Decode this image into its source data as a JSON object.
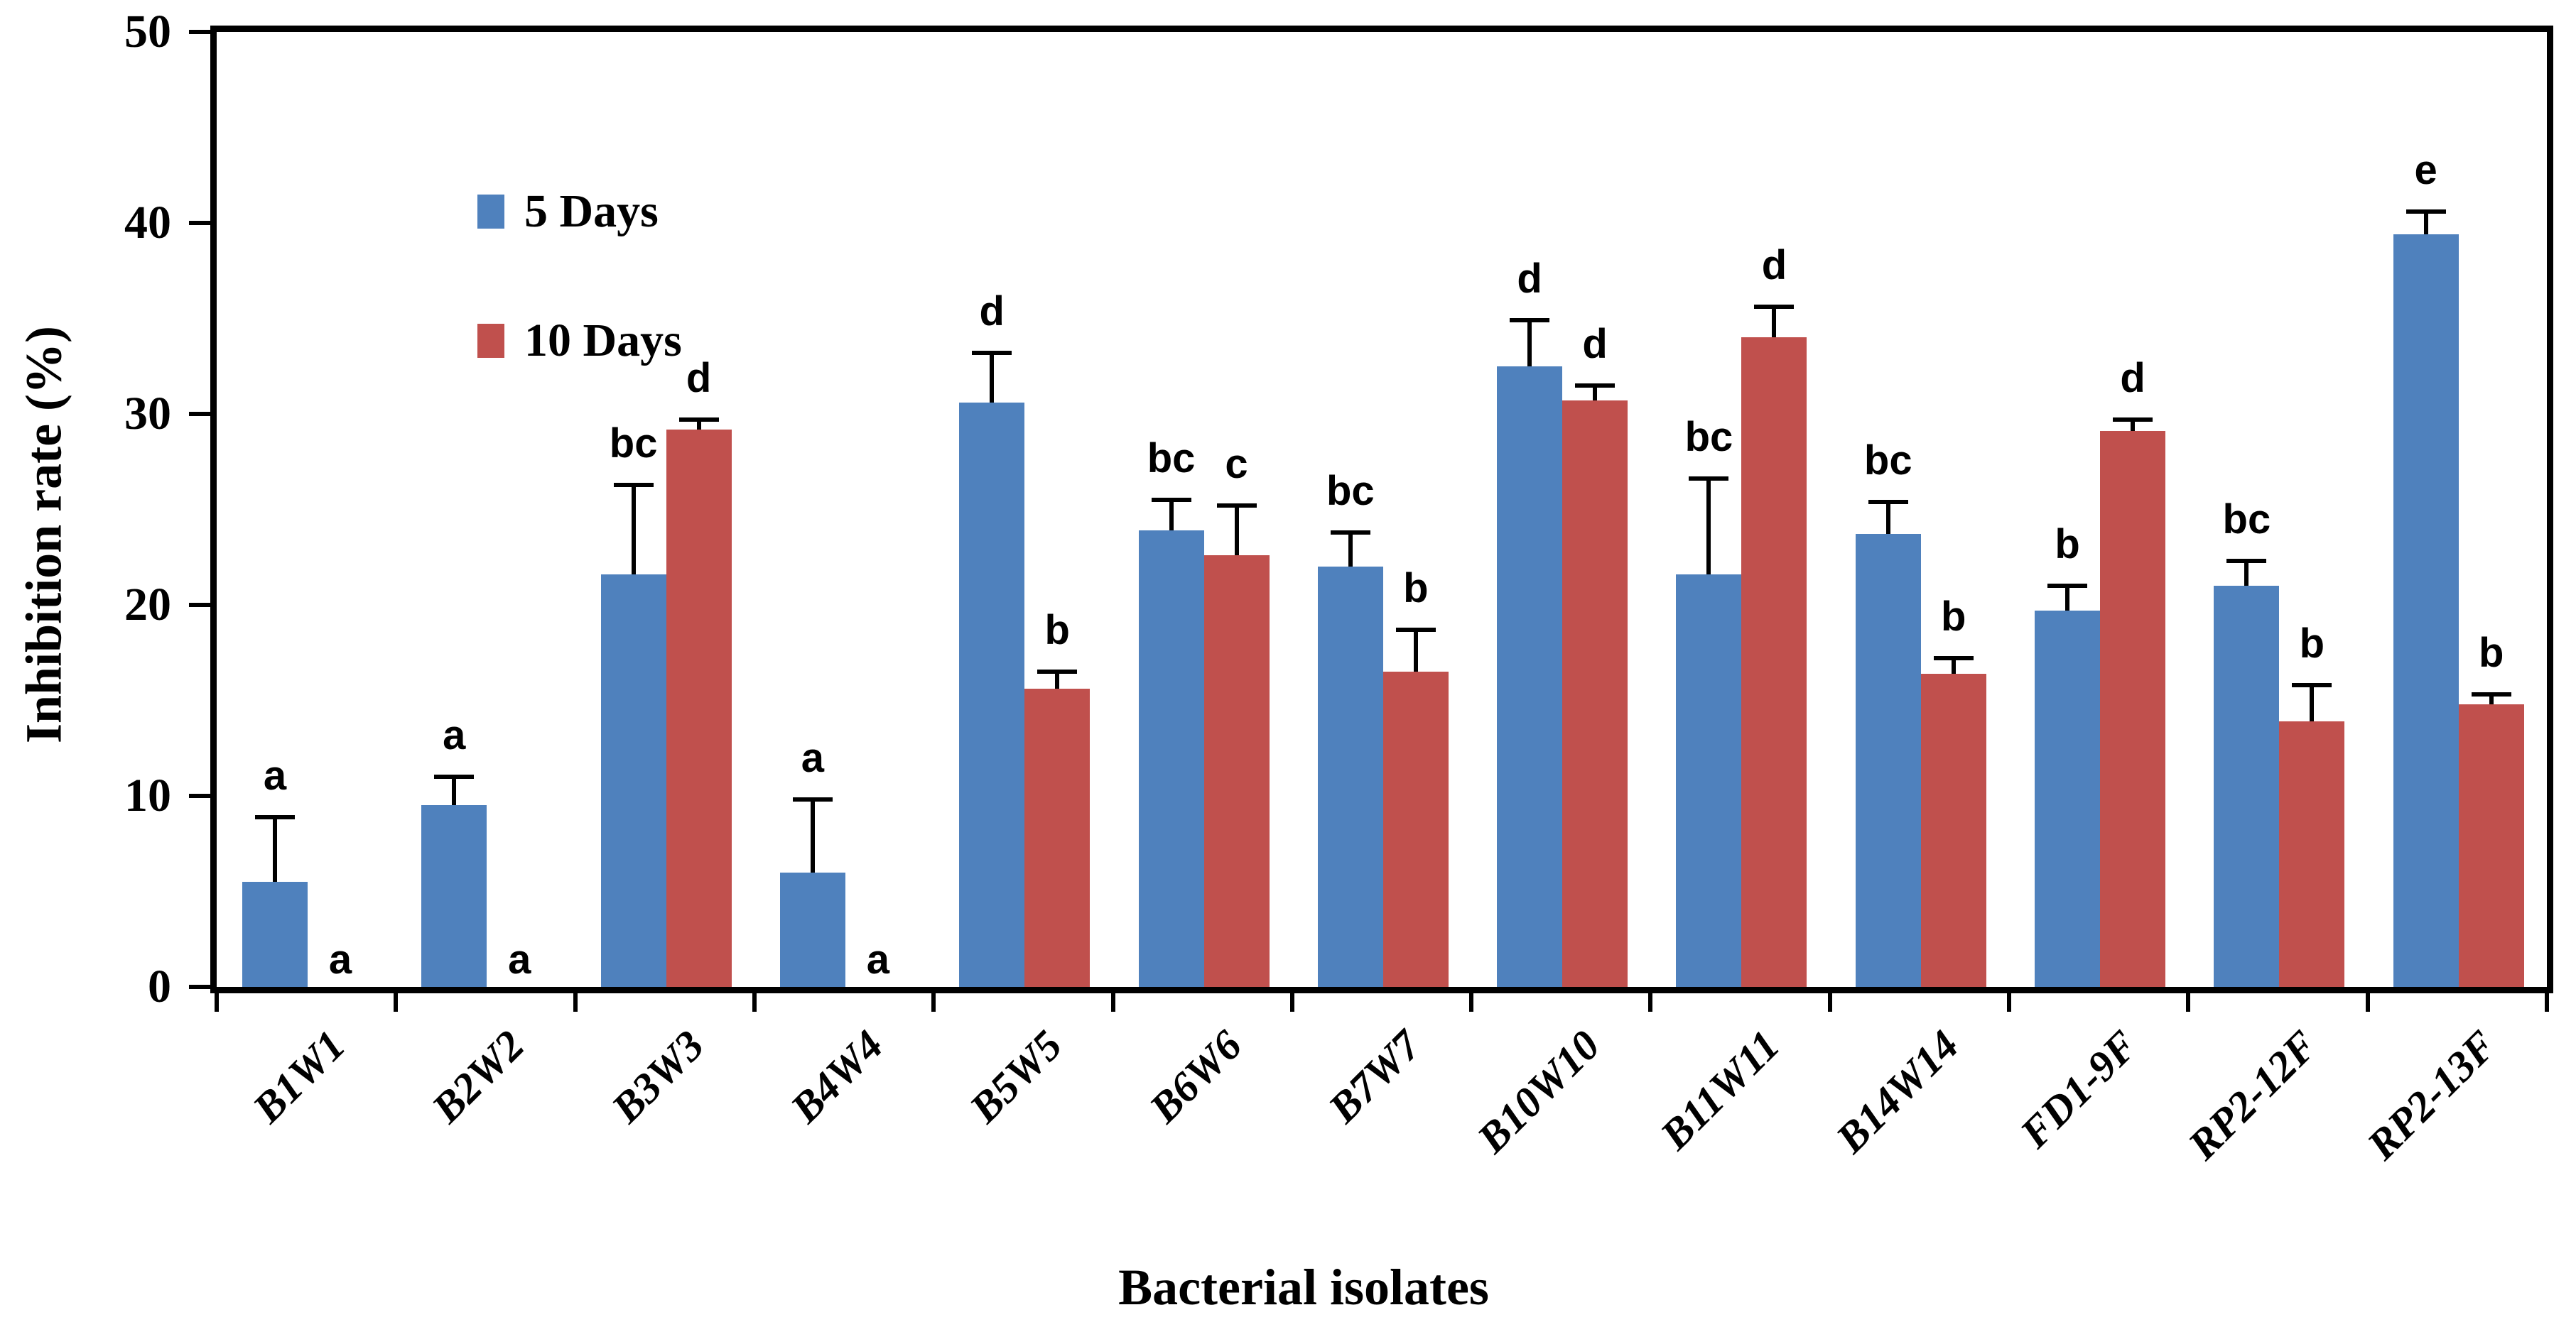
{
  "figure": {
    "kind": "grouped bar chart with error bars and significance letters",
    "background": "#ffffff",
    "frame_color": "#000000"
  },
  "legend": {
    "position": "top-left-inside",
    "items": [
      {
        "label": "5 Days",
        "color": "#4F81BD"
      },
      {
        "label": "10 Days",
        "color": "#C0504D"
      }
    ]
  },
  "axes": {
    "y_title": "Inhibition rate (%)",
    "x_title": "Bacterial isolates",
    "y_min": 0,
    "y_max": 50,
    "y_tick_step": 10,
    "y_tick_labels": [
      "0",
      "10",
      "20",
      "30",
      "40",
      "50"
    ]
  },
  "chart_data": {
    "type": "bar",
    "title": "",
    "xlabel": "Bacterial isolates",
    "ylabel": "Inhibition rate (%)",
    "ylim": [
      0,
      50
    ],
    "grid": "off",
    "legend_position": "top-left-inside",
    "error_bars": "upper-only",
    "categories": [
      "B1W1",
      "B2W2",
      "B3W3",
      "B4W4",
      "B5W5",
      "B6W6",
      "B7W7",
      "B10W10",
      "B11W11",
      "B14W14",
      "FD1-9F",
      "RP2-12F",
      "RP2-13F"
    ],
    "series": [
      {
        "name": "5 Days",
        "color": "#4F81BD",
        "values": [
          5.5,
          9.5,
          21.6,
          6.0,
          30.6,
          23.9,
          22.0,
          32.5,
          21.6,
          23.7,
          19.7,
          21.0,
          39.4
        ],
        "errors": [
          3.4,
          1.5,
          4.7,
          3.8,
          2.6,
          1.6,
          1.8,
          2.4,
          5.0,
          1.7,
          1.3,
          1.3,
          1.2
        ],
        "letters": [
          "a",
          "a",
          "bc",
          "a",
          "d",
          "bc",
          "bc",
          "d",
          "bc",
          "bc",
          "b",
          "bc",
          "e"
        ]
      },
      {
        "name": "10 Days",
        "color": "#C0504D",
        "values": [
          0,
          0,
          29.2,
          0,
          15.6,
          22.6,
          16.5,
          30.7,
          34.0,
          16.4,
          29.1,
          13.9,
          14.8
        ],
        "errors": [
          0,
          0,
          0.5,
          0,
          0.9,
          2.6,
          2.2,
          0.8,
          1.6,
          0.8,
          0.6,
          1.9,
          0.5
        ],
        "letters": [
          "a",
          "a",
          "d",
          "a",
          "b",
          "c",
          "b",
          "d",
          "d",
          "b",
          "d",
          "b",
          "b"
        ]
      }
    ]
  }
}
